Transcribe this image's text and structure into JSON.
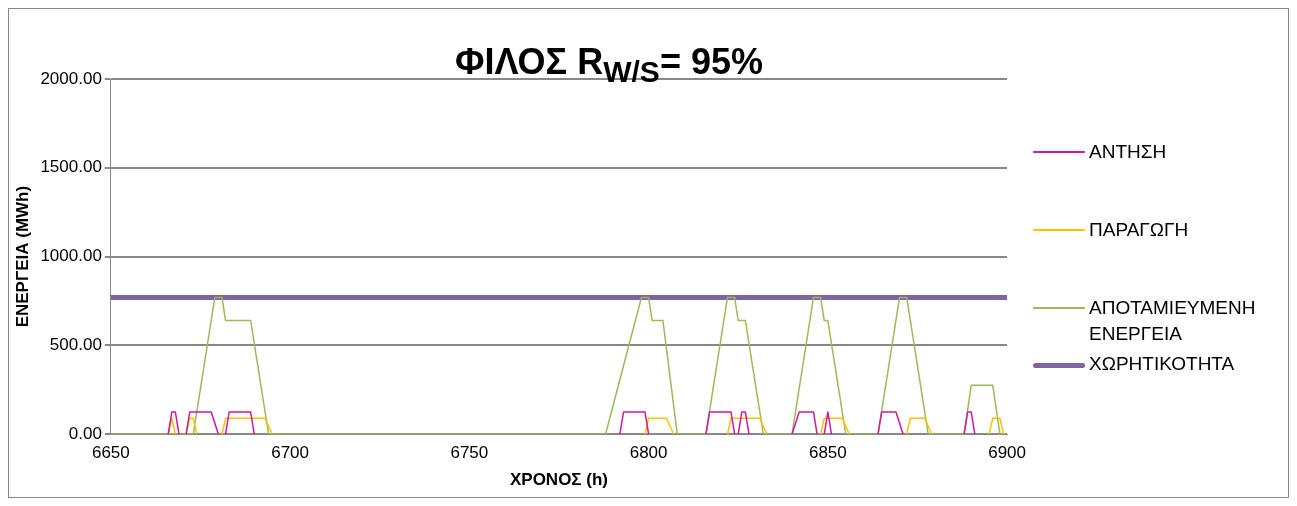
{
  "chart_data": {
    "type": "line",
    "title": "ΦΙΛΟΣ R$_{W/S}$= 95%",
    "xlabel": "ΧΡΟΝΟΣ (h)",
    "ylabel": "ΕΝΕΡΓΕΙΑ (MWh)",
    "xlim": [
      6650,
      6900
    ],
    "xticks": [
      6650,
      6700,
      6750,
      6800,
      6850,
      6900
    ],
    "ylim": [
      0,
      2000
    ],
    "yticks": [
      {
        "value": 0,
        "label": "0.00"
      },
      {
        "value": 500,
        "label": "500.00"
      },
      {
        "value": 1000,
        "label": "1000.00"
      },
      {
        "value": 1500,
        "label": "1500.00"
      },
      {
        "value": 2000,
        "label": "2000.00"
      }
    ],
    "grid": "y",
    "legend": "right",
    "marker": "none",
    "line_style": "solid",
    "series": [
      {
        "name": "ΑΝΤΗΣΗ",
        "color": "#d4169e",
        "x": [
          6666,
          6667,
          6668,
          6669,
          6670,
          6671,
          6672,
          6678,
          6680,
          6681,
          6682,
          6683,
          6689,
          6690,
          6750,
          6792,
          6793,
          6799,
          6800,
          6810,
          6816,
          6817,
          6823,
          6824,
          6824.5,
          6825,
          6826,
          6827,
          6828,
          6835,
          6840,
          6842,
          6846,
          6847,
          6848,
          6849,
          6850,
          6851,
          6860,
          6864,
          6865,
          6869,
          6871,
          6880,
          6888,
          6889,
          6890,
          6891
        ],
        "values": [
          0,
          125,
          125,
          0,
          null,
          0,
          125,
          125,
          0,
          null,
          0,
          125,
          125,
          0,
          null,
          0,
          125,
          125,
          0,
          null,
          0,
          125,
          125,
          0,
          null,
          0,
          125,
          125,
          0,
          null,
          0,
          125,
          125,
          0,
          null,
          0,
          125,
          0,
          null,
          0,
          125,
          125,
          0,
          null,
          0,
          125,
          125,
          0
        ]
      },
      {
        "name": "ΠΑΡΑΓΩΓΗ",
        "color": "#ffc000",
        "x": [
          6666,
          6667,
          6668,
          6670,
          6671,
          6672,
          6673,
          6674,
          6678,
          6681,
          6682,
          6693,
          6695,
          6750,
          6799,
          6800,
          6805,
          6807,
          6815,
          6822,
          6823,
          6831,
          6833,
          6840,
          6848,
          6849,
          6854,
          6856,
          6865,
          6872,
          6873,
          6877,
          6879,
          6885,
          6895,
          6896,
          6898,
          6899
        ],
        "values": [
          0,
          90,
          0,
          null,
          0,
          90,
          90,
          0,
          null,
          0,
          90,
          90,
          0,
          null,
          0,
          90,
          90,
          0,
          null,
          0,
          90,
          90,
          0,
          null,
          0,
          90,
          90,
          0,
          null,
          0,
          90,
          90,
          0,
          null,
          0,
          90,
          90,
          0
        ]
      },
      {
        "name": "ΑΠΟΤΑΜΙΕΥΜΕΝΗ ΕΝΕΡΓΕΙΑ",
        "color": "#9bbb59",
        "x": [
          6650,
          6673,
          6679,
          6681,
          6682,
          6689,
          6694,
          6788,
          6798,
          6800,
          6801,
          6804,
          6808,
          6816,
          6822,
          6824,
          6825,
          6827,
          6832,
          6840,
          6846,
          6848,
          6849,
          6850,
          6855,
          6864,
          6870,
          6872,
          6878,
          6888,
          6890,
          6896,
          6898,
          6900
        ],
        "values": [
          0,
          0,
          770,
          770,
          640,
          640,
          0,
          0,
          770,
          770,
          640,
          640,
          0,
          0,
          770,
          770,
          640,
          640,
          0,
          0,
          770,
          770,
          640,
          640,
          0,
          0,
          770,
          770,
          0,
          0,
          275,
          275,
          0,
          0
        ]
      },
      {
        "name": "ΧΩΡΗΤΙΚΟΤΗΤΑ",
        "color": "#8064a2",
        "x": [
          6650,
          6900
        ],
        "values": [
          770,
          770
        ]
      }
    ]
  }
}
